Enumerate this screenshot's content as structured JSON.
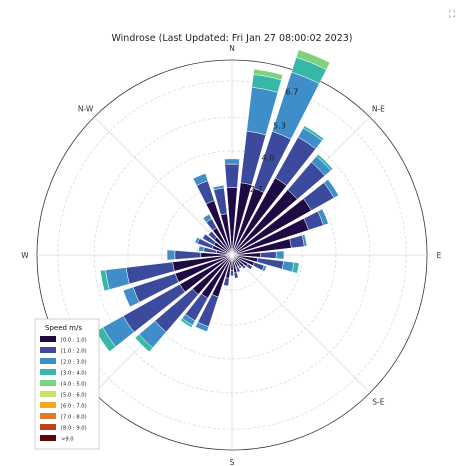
{
  "chart_data": {
    "type": "windrose",
    "title": "Windrose (Last Updated: Fri Jan 27 08:00:02 2023)",
    "directions": [
      "N",
      "N-E",
      "E",
      "S-E",
      "S",
      "S-W",
      "W",
      "N-W"
    ],
    "ring_labels": [
      "2.7",
      "4.0",
      "5.3",
      "6.7"
    ],
    "rmax": 7.5,
    "legend": {
      "title": "Speed m/s",
      "placement": "lower-left",
      "bins": [
        {
          "label": "[0.0 : 1.0)",
          "color": "#1e0a45"
        },
        {
          "label": "[1.0 : 2.0)",
          "color": "#3b4a9c"
        },
        {
          "label": "[2.0 : 3.0)",
          "color": "#3f8ec9"
        },
        {
          "label": "[3.0 : 4.0)",
          "color": "#37b7a7"
        },
        {
          "label": "[4.0 : 5.0)",
          "color": "#7fd27c"
        },
        {
          "label": "[5.0 : 6.0)",
          "color": "#c9e26a"
        },
        {
          "label": "[6.0 : 7.0)",
          "color": "#f5a623"
        },
        {
          "label": "[7.0 : 8.0)",
          "color": "#e9742b"
        },
        {
          "label": "[8.0 : 9.0)",
          "color": "#c23f1f"
        },
        {
          "label": ">9.0",
          "color": "#5a0a0a"
        }
      ]
    },
    "sectors": [
      {
        "angle": 0,
        "values": [
          2.6,
          0.9,
          0.2
        ]
      },
      {
        "angle": 11.25,
        "values": [
          2.8,
          2.0,
          1.7,
          0.5,
          0.2
        ]
      },
      {
        "angle": 22.5,
        "values": [
          2.7,
          2.3,
          2.4,
          0.6,
          0.3
        ]
      },
      {
        "angle": 33.75,
        "values": [
          3.4,
          1.8,
          0.4,
          0.1
        ]
      },
      {
        "angle": 45,
        "values": [
          3.3,
          1.4,
          0.3,
          0.1
        ]
      },
      {
        "angle": 56.25,
        "values": [
          3.5,
          1.0,
          0.2
        ]
      },
      {
        "angle": 67.5,
        "values": [
          3.1,
          0.6,
          0.2
        ]
      },
      {
        "angle": 78.75,
        "values": [
          2.3,
          0.5,
          0.1
        ]
      },
      {
        "angle": 90,
        "values": [
          1.1,
          0.6,
          0.3
        ]
      },
      {
        "angle": 101.25,
        "values": [
          1.0,
          1.0,
          0.4,
          0.2
        ]
      },
      {
        "angle": 112.5,
        "values": [
          0.9,
          0.4,
          0.1
        ]
      },
      {
        "angle": 123.75,
        "values": [
          0.7,
          0.2
        ]
      },
      {
        "angle": 135,
        "values": [
          0.6,
          0.1
        ]
      },
      {
        "angle": 146.25,
        "values": [
          0.5,
          0.1
        ]
      },
      {
        "angle": 157.5,
        "values": [
          0.5,
          0.2
        ]
      },
      {
        "angle": 168.75,
        "values": [
          0.7,
          0.2
        ]
      },
      {
        "angle": 180,
        "values": [
          0.6,
          0.2
        ]
      },
      {
        "angle": 191.25,
        "values": [
          0.9,
          0.3
        ]
      },
      {
        "angle": 202.5,
        "values": [
          1.7,
          1.2,
          0.2
        ]
      },
      {
        "angle": 213.75,
        "values": [
          1.9,
          1.0,
          0.2,
          0.1
        ]
      },
      {
        "angle": 225,
        "values": [
          2.0,
          1.9,
          0.8,
          0.2
        ]
      },
      {
        "angle": 236.25,
        "values": [
          2.3,
          2.5,
          0.9,
          0.3
        ]
      },
      {
        "angle": 247.5,
        "values": [
          2.3,
          1.7,
          0.4
        ]
      },
      {
        "angle": 258.75,
        "values": [
          2.3,
          1.8,
          0.8,
          0.2
        ]
      },
      {
        "angle": 270,
        "values": [
          1.2,
          1.0,
          0.3
        ]
      },
      {
        "angle": 281.25,
        "values": [
          0.6,
          0.5,
          0.2
        ]
      },
      {
        "angle": 292.5,
        "values": [
          0.8,
          0.6,
          0.1
        ]
      },
      {
        "angle": 303.75,
        "values": [
          0.8,
          0.5
        ]
      },
      {
        "angle": 315,
        "values": [
          0.9,
          0.3
        ]
      },
      {
        "angle": 326.25,
        "values": [
          1.2,
          0.4,
          0.2
        ]
      },
      {
        "angle": 337.5,
        "values": [
          2.2,
          0.8,
          0.3
        ]
      },
      {
        "angle": 348.75,
        "values": [
          1.6,
          1.0,
          0.1
        ]
      }
    ]
  },
  "ui": {
    "fullscreen_icon": "fullscreen-icon",
    "fullscreen_glyph": "⛶"
  }
}
